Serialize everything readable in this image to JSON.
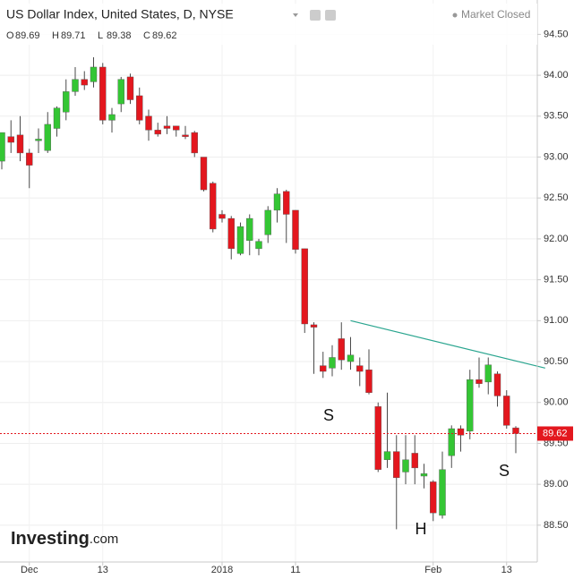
{
  "chart_data": {
    "type": "candlestick",
    "title": "US Dollar Index, United States, D, NYSE",
    "status": "Market Closed",
    "ohlc_labels": [
      "O",
      "H",
      "L",
      "C"
    ],
    "watermark": "Investing",
    "watermark_suffix": ".com",
    "annotations": [
      "S",
      "H",
      "S"
    ],
    "categories": [
      null,
      null,
      null,
      "Dec",
      null,
      null,
      null,
      null,
      null,
      null,
      null,
      "13",
      null,
      null,
      null,
      null,
      null,
      null,
      null,
      null,
      null,
      null,
      null,
      null,
      "2018",
      null,
      null,
      null,
      null,
      null,
      null,
      null,
      "11",
      null,
      null,
      null,
      null,
      null,
      null,
      null,
      null,
      null,
      null,
      null,
      null,
      null,
      null,
      "Feb",
      null,
      null,
      null,
      null,
      null,
      null,
      null,
      "13",
      null
    ],
    "open": [
      92.95,
      93.25,
      93.27,
      93.05,
      93.2,
      93.08,
      93.35,
      93.55,
      93.8,
      93.95,
      93.92,
      94.1,
      93.45,
      93.65,
      93.98,
      93.75,
      93.5,
      93.33,
      93.38,
      93.38,
      93.27,
      93.3,
      93.0,
      92.68,
      92.3,
      92.25,
      91.82,
      91.98,
      91.88,
      92.05,
      92.35,
      92.58,
      92.35,
      91.88,
      90.95,
      90.45,
      90.42,
      90.78,
      90.5,
      90.45,
      90.4,
      89.95,
      89.3,
      89.4,
      89.15,
      89.38,
      89.1,
      89.03,
      88.62,
      89.35,
      89.68,
      89.65,
      90.28,
      90.25,
      90.35,
      90.08,
      89.69
    ],
    "high": [
      93.3,
      93.45,
      93.5,
      93.1,
      93.35,
      93.55,
      93.62,
      93.95,
      94.1,
      94.05,
      94.22,
      94.15,
      93.6,
      93.98,
      94.02,
      93.85,
      93.58,
      93.42,
      93.5,
      93.38,
      93.38,
      93.32,
      93.0,
      92.7,
      92.35,
      92.28,
      92.2,
      92.3,
      92.0,
      92.4,
      92.62,
      92.6,
      92.35,
      91.88,
      90.98,
      90.62,
      90.7,
      90.98,
      90.8,
      90.55,
      90.65,
      90.0,
      90.12,
      89.6,
      89.6,
      89.6,
      89.25,
      89.05,
      89.4,
      89.72,
      89.72,
      90.4,
      90.55,
      90.55,
      90.38,
      90.15,
      89.71
    ],
    "low": [
      92.85,
      93.05,
      92.95,
      92.62,
      93.05,
      93.05,
      93.25,
      93.45,
      93.75,
      93.82,
      93.85,
      93.4,
      93.3,
      93.55,
      93.65,
      93.4,
      93.2,
      93.25,
      93.28,
      93.25,
      93.22,
      93.0,
      92.58,
      92.08,
      92.2,
      91.75,
      91.8,
      91.8,
      91.8,
      91.95,
      92.2,
      91.95,
      91.82,
      90.85,
      90.35,
      90.3,
      90.32,
      90.4,
      90.4,
      90.2,
      90.1,
      89.15,
      89.2,
      88.45,
      89.0,
      89.0,
      88.95,
      88.55,
      88.58,
      89.2,
      89.4,
      89.55,
      90.18,
      90.1,
      89.95,
      89.68,
      89.38
    ],
    "close": [
      93.3,
      93.18,
      93.05,
      92.9,
      93.22,
      93.4,
      93.6,
      93.8,
      93.95,
      93.88,
      94.1,
      93.45,
      93.52,
      93.95,
      93.7,
      93.45,
      93.33,
      93.28,
      93.35,
      93.33,
      93.25,
      93.05,
      92.6,
      92.12,
      92.25,
      91.88,
      92.15,
      92.25,
      91.97,
      92.35,
      92.55,
      92.3,
      91.87,
      90.96,
      90.92,
      90.38,
      90.55,
      90.52,
      90.58,
      90.38,
      90.12,
      89.18,
      89.4,
      89.08,
      89.3,
      89.2,
      89.13,
      88.65,
      89.18,
      89.68,
      89.6,
      90.28,
      90.23,
      90.46,
      90.08,
      89.72,
      89.62
    ],
    "up_color": "#34c634",
    "down_color": "#e3171e",
    "wick_color": "#4a4a4a",
    "trendline": {
      "x": [
        38,
        59.2
      ],
      "values": [
        91.0,
        90.42
      ],
      "color": "#2aa58f"
    },
    "ylim": [
      88.05,
      94.92
    ],
    "yticks": [
      {
        "value": 88.5,
        "label": "88.50"
      },
      {
        "value": 89,
        "label": "89.00"
      },
      {
        "value": 89.5,
        "label": "89.50"
      },
      {
        "value": 90,
        "label": "90.00"
      },
      {
        "value": 90.5,
        "label": "90.50"
      },
      {
        "value": 91,
        "label": "91.00"
      },
      {
        "value": 91.5,
        "label": "91.50"
      },
      {
        "value": 92,
        "label": "92.00"
      },
      {
        "value": 92.5,
        "label": "92.50"
      },
      {
        "value": 93,
        "label": "93.00"
      },
      {
        "value": 93.5,
        "label": "93.50"
      },
      {
        "value": 94,
        "label": "94.00"
      },
      {
        "value": 94.5,
        "label": "94.50"
      }
    ],
    "grid": true
  }
}
